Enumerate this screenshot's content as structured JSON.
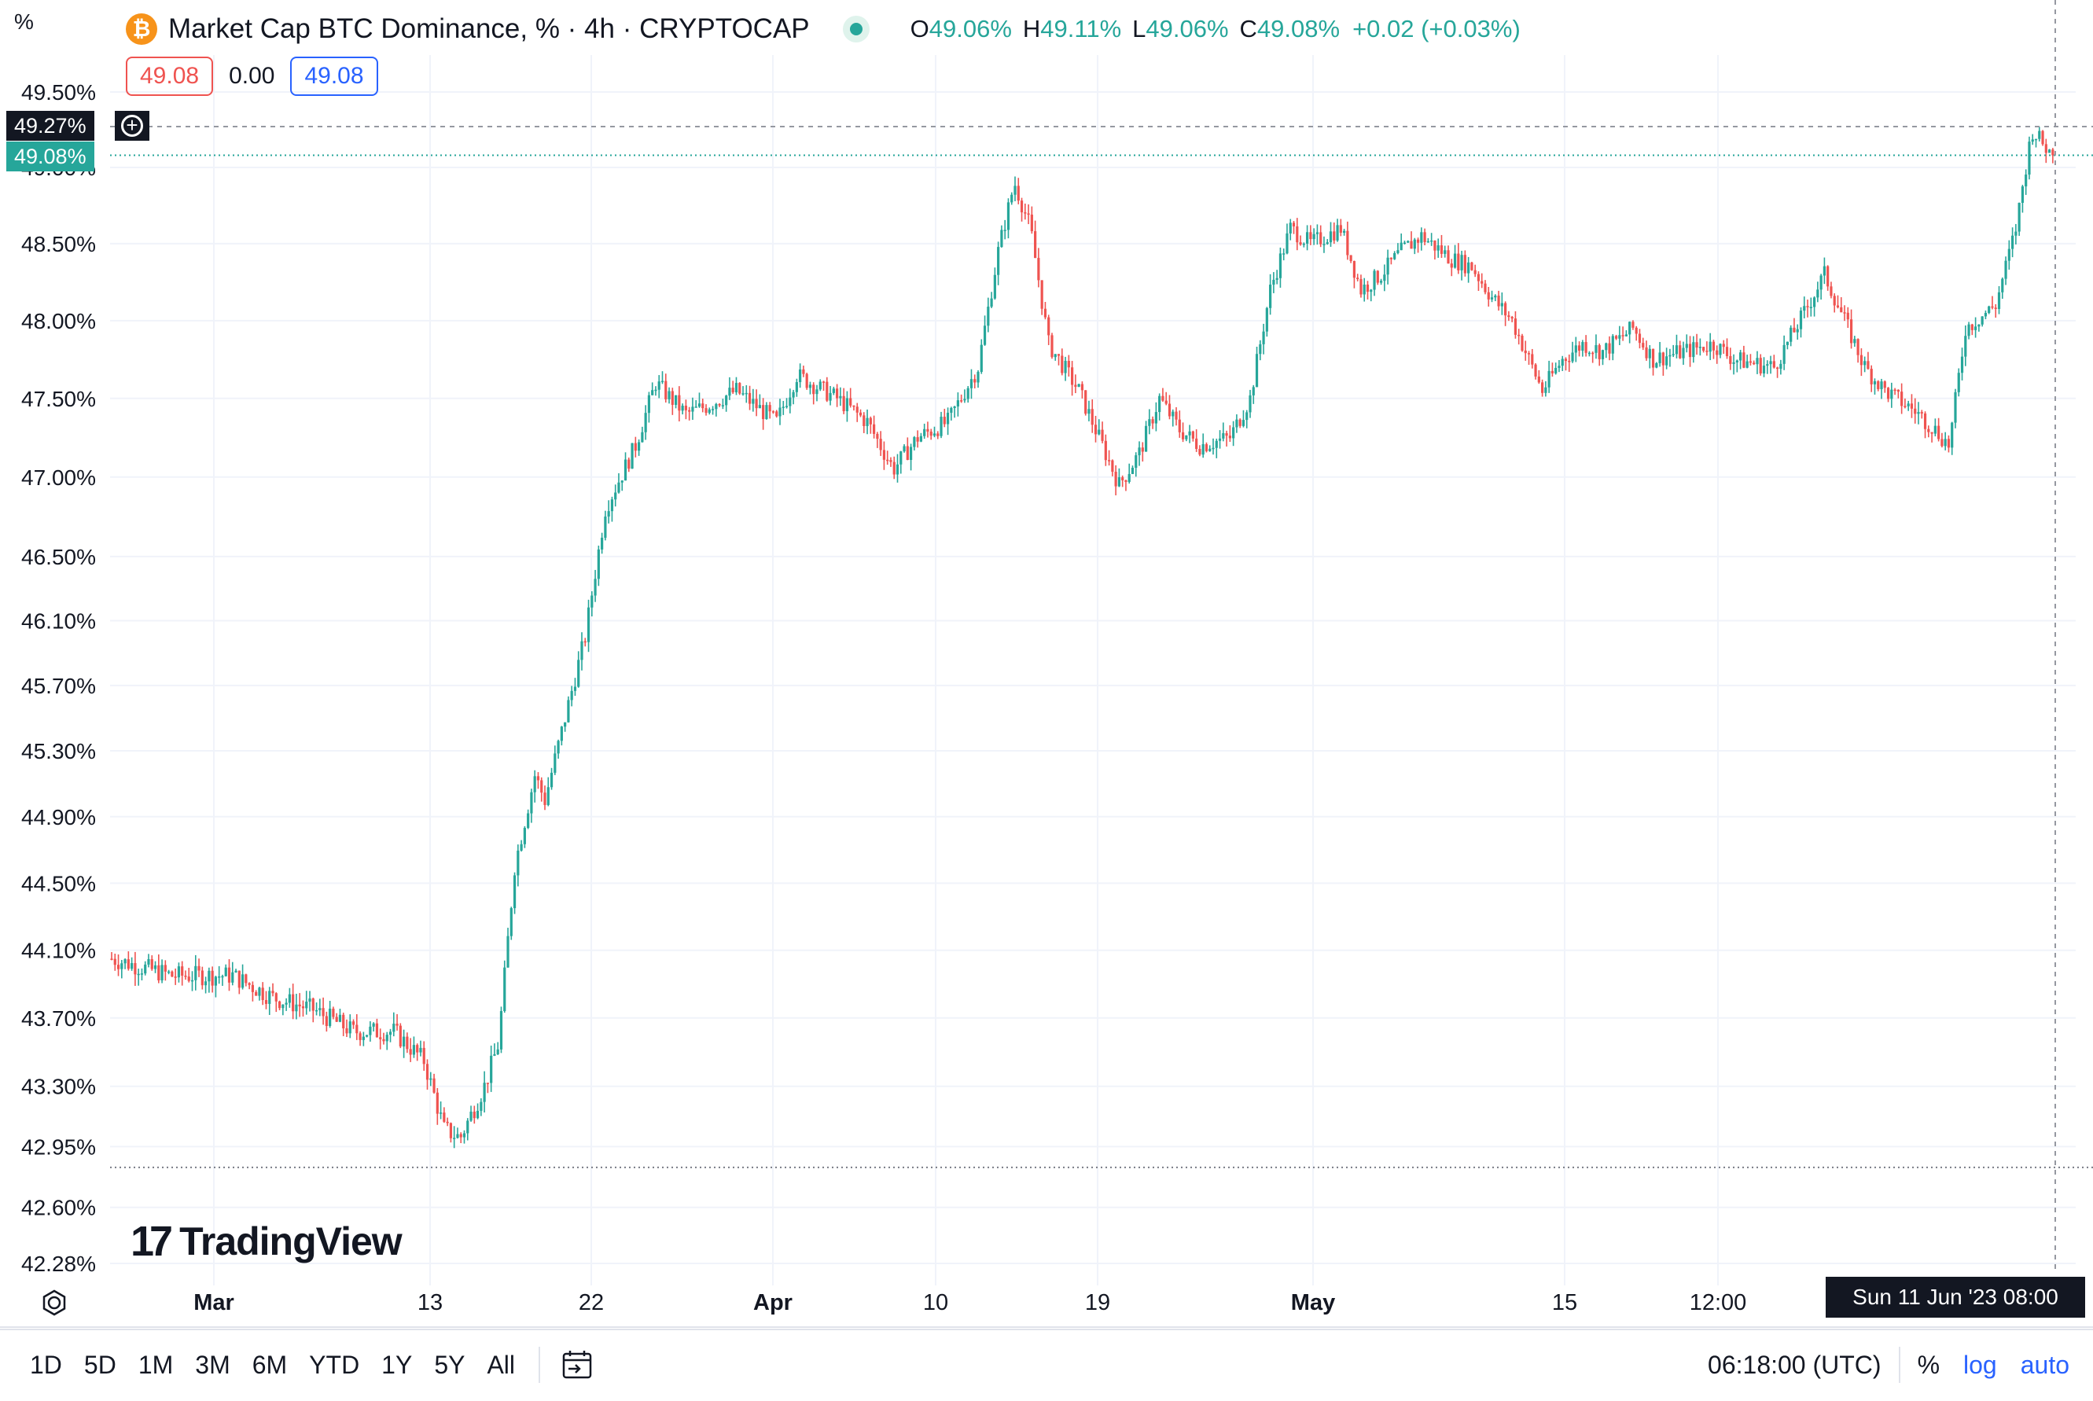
{
  "header": {
    "unit_label": "%",
    "title": "Market Cap BTC Dominance, % · 4h · CRYPTOCAP",
    "ohlc": {
      "o_key": "O",
      "o": "49.06%",
      "h_key": "H",
      "h": "49.11%",
      "l_key": "L",
      "l": "49.06%",
      "c_key": "C",
      "c": "49.08%",
      "change": "+0.02 (+0.03%)"
    },
    "sell": "49.08",
    "spread": "0.00",
    "buy": "49.08"
  },
  "price_labels": {
    "crosshair": "49.27%",
    "last": "49.08%"
  },
  "crosshair_time": "Sun 11 Jun '23  08:00",
  "watermark": "TradingView",
  "bottom_bar": {
    "timeframes": [
      "1D",
      "5D",
      "1M",
      "3M",
      "6M",
      "YTD",
      "1Y",
      "5Y",
      "All"
    ],
    "clock": "06:18:00 (UTC)",
    "pct": "%",
    "log": "log",
    "auto": "auto"
  },
  "colors": {
    "up": "#26a69a",
    "down": "#ef5350",
    "grid": "#f0f3fa",
    "accent": "#2962ff"
  },
  "chart_data": {
    "type": "candlestick",
    "title": "Market Cap BTC Dominance, % · 4h · CRYPTOCAP",
    "y_ticks": [
      "49.50%",
      "49.00%",
      "48.50%",
      "48.00%",
      "47.50%",
      "47.00%",
      "46.50%",
      "46.10%",
      "45.70%",
      "45.30%",
      "44.90%",
      "44.50%",
      "44.10%",
      "43.70%",
      "43.30%",
      "42.95%",
      "42.60%",
      "42.28%"
    ],
    "x_ticks": [
      "Mar",
      "13",
      "22",
      "Apr",
      "10",
      "19",
      "May",
      "15",
      "12:00"
    ],
    "ylim": [
      42.28,
      49.5
    ],
    "scale": "log",
    "last_price": 49.08,
    "price_path": [
      [
        0,
        44.05
      ],
      [
        3,
        43.95
      ],
      [
        6,
        43.95
      ],
      [
        8,
        43.82
      ],
      [
        10,
        43.75
      ],
      [
        12,
        43.62
      ],
      [
        14,
        43.62
      ],
      [
        15.5,
        43.45
      ],
      [
        16.5,
        43.05
      ],
      [
        17.3,
        43.0
      ],
      [
        18.5,
        43.3
      ],
      [
        19.2,
        43.55
      ],
      [
        20,
        44.6
      ],
      [
        21,
        45.15
      ],
      [
        21.5,
        45.0
      ],
      [
        22.5,
        45.5
      ],
      [
        23.5,
        46.0
      ],
      [
        24.5,
        46.8
      ],
      [
        26,
        47.2
      ],
      [
        27,
        47.6
      ],
      [
        28.5,
        47.4
      ],
      [
        29.5,
        47.45
      ],
      [
        31,
        47.55
      ],
      [
        33,
        47.35
      ],
      [
        34,
        47.65
      ],
      [
        36,
        47.5
      ],
      [
        37.5,
        47.35
      ],
      [
        38.8,
        47.05
      ],
      [
        40,
        47.25
      ],
      [
        41.5,
        47.35
      ],
      [
        43,
        47.7
      ],
      [
        44,
        48.45
      ],
      [
        44.8,
        48.9
      ],
      [
        45.6,
        48.6
      ],
      [
        46.5,
        47.85
      ],
      [
        48,
        47.55
      ],
      [
        49,
        47.25
      ],
      [
        50,
        46.95
      ],
      [
        51,
        47.15
      ],
      [
        52,
        47.5
      ],
      [
        53,
        47.3
      ],
      [
        54,
        47.2
      ],
      [
        55.5,
        47.25
      ],
      [
        56.5,
        47.5
      ],
      [
        57.5,
        48.2
      ],
      [
        58.5,
        48.6
      ],
      [
        59.5,
        48.5
      ],
      [
        61,
        48.6
      ],
      [
        62,
        48.2
      ],
      [
        63,
        48.3
      ],
      [
        64,
        48.45
      ],
      [
        65,
        48.55
      ],
      [
        66.5,
        48.4
      ],
      [
        67.5,
        48.35
      ],
      [
        68.5,
        48.15
      ],
      [
        69.5,
        48.0
      ],
      [
        71,
        47.55
      ],
      [
        72,
        47.75
      ],
      [
        73,
        47.85
      ],
      [
        74,
        47.8
      ],
      [
        75.5,
        47.95
      ],
      [
        76.5,
        47.75
      ],
      [
        78,
        47.8
      ],
      [
        79.5,
        47.85
      ],
      [
        80.5,
        47.75
      ],
      [
        82.5,
        47.7
      ],
      [
        84,
        48.05
      ],
      [
        85,
        48.3
      ],
      [
        86,
        48.0
      ],
      [
        87,
        47.7
      ],
      [
        88,
        47.55
      ],
      [
        89.5,
        47.42
      ],
      [
        90.5,
        47.3
      ],
      [
        91.2,
        47.2
      ],
      [
        92,
        47.95
      ],
      [
        93.5,
        48.1
      ],
      [
        94.5,
        48.6
      ],
      [
        95.3,
        49.25
      ],
      [
        96.3,
        49.08
      ]
    ]
  }
}
